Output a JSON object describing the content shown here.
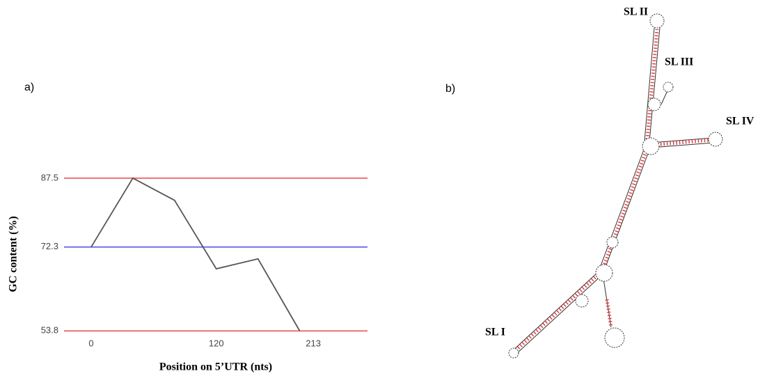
{
  "panel_labels": [
    "a)",
    "b)"
  ],
  "chart_data": {
    "type": "line",
    "x_label": "Position on 5’UTR (nts)",
    "y_label": "GC content (%)",
    "x": [
      0,
      40,
      80,
      120,
      160,
      200
    ],
    "series": [
      {
        "color": "#555555",
        "values": [
          72.3,
          87.5,
          82.6,
          67.5,
          69.7,
          53.8
        ]
      }
    ],
    "xlim": [
      -26,
      265
    ],
    "xticks": [
      0,
      120,
      213
    ],
    "ylim": [
      50,
      95
    ],
    "yticks": [
      53.8,
      72.3,
      87.5
    ],
    "grid": true,
    "grid_colors": [
      "#f07070",
      "#7070f0",
      "#f07070"
    ]
  },
  "diagram": {
    "labels": [
      "SL I",
      "SL II",
      "SL III",
      "SL IV"
    ]
  }
}
